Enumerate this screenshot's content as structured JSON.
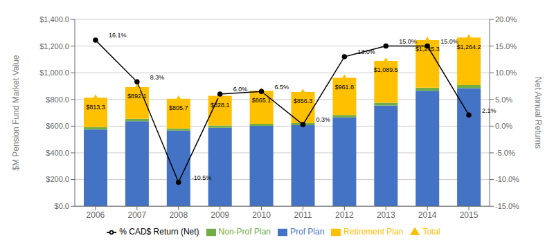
{
  "chart_data": {
    "type": "bar",
    "stacked": true,
    "grid": true,
    "legend": "bottom",
    "ylabel": "$M Pension Fund Market Value",
    "y2label": "Net Annual Returns",
    "categories": [
      "2006",
      "2007",
      "2008",
      "2009",
      "2010",
      "2011",
      "2012",
      "2013",
      "2014",
      "2015"
    ],
    "series": [
      {
        "name": "Prof Plan",
        "type": "bar",
        "color": "#4472C4",
        "values": [
          575,
          637,
          567,
          588,
          602,
          607,
          665,
          755,
          865,
          885
        ]
      },
      {
        "name": "Non-Prof Plan",
        "type": "bar",
        "color": "#70AD47",
        "values": [
          18,
          18,
          15,
          16,
          16,
          16,
          18,
          21,
          23,
          23
        ]
      },
      {
        "name": "Retirement Plan",
        "type": "bar",
        "color": "#FFC000",
        "values": [
          220,
          237,
          224,
          224,
          247,
          233,
          279,
          313,
          357,
          356
        ]
      },
      {
        "name": "Total",
        "type": "scatter",
        "marker": "triangle",
        "color": "#FFC000",
        "data_labels": true,
        "values": [
          813.3,
          892.1,
          805.7,
          828.1,
          865.1,
          856.3,
          961.8,
          1089.5,
          1245.3,
          1264.2
        ],
        "value_labels": [
          "$813.3",
          "$892.1",
          "$805.7",
          "$828.1",
          "$865.1",
          "$856.3",
          "$961.8",
          "$1,089.5",
          "$1,245.3",
          "$1,264.2"
        ]
      },
      {
        "name": "% CAD$ Return (Net)",
        "type": "line",
        "axis": "y2",
        "marker": "circle",
        "line_style": "solid",
        "color": "#000000",
        "data_labels": true,
        "values": [
          16.1,
          8.3,
          -10.5,
          6.0,
          6.5,
          0.3,
          13.0,
          15.0,
          15.0,
          2.1
        ],
        "value_labels": [
          "16.1%",
          "8.3%",
          "-10.5%",
          "6.0%",
          "6.5%",
          "0.3%",
          "13.0%",
          "15.0%",
          "15.0%",
          "2.1%"
        ]
      }
    ],
    "ylim": [
      0,
      1400
    ],
    "yticks": [
      {
        "value": 0,
        "label": "$0.0"
      },
      {
        "value": 200,
        "label": "$200.0"
      },
      {
        "value": 400,
        "label": "$400.0"
      },
      {
        "value": 600,
        "label": "$600.0"
      },
      {
        "value": 800,
        "label": "$800.0"
      },
      {
        "value": 1000,
        "label": "$1,000.0"
      },
      {
        "value": 1200,
        "label": "$1,200.0"
      },
      {
        "value": 1400,
        "label": "$1,400.0"
      }
    ],
    "y2lim": [
      -15,
      20
    ],
    "y2ticks": [
      {
        "value": -15,
        "label": "-15.0%"
      },
      {
        "value": -10,
        "label": "-10.0%"
      },
      {
        "value": -5,
        "label": "-5.0%"
      },
      {
        "value": 0,
        "label": "0.0%"
      },
      {
        "value": 5,
        "label": "5.0%"
      },
      {
        "value": 10,
        "label": "10.0%"
      },
      {
        "value": 15,
        "label": "15.0%"
      },
      {
        "value": 20,
        "label": "20.0%"
      }
    ]
  }
}
